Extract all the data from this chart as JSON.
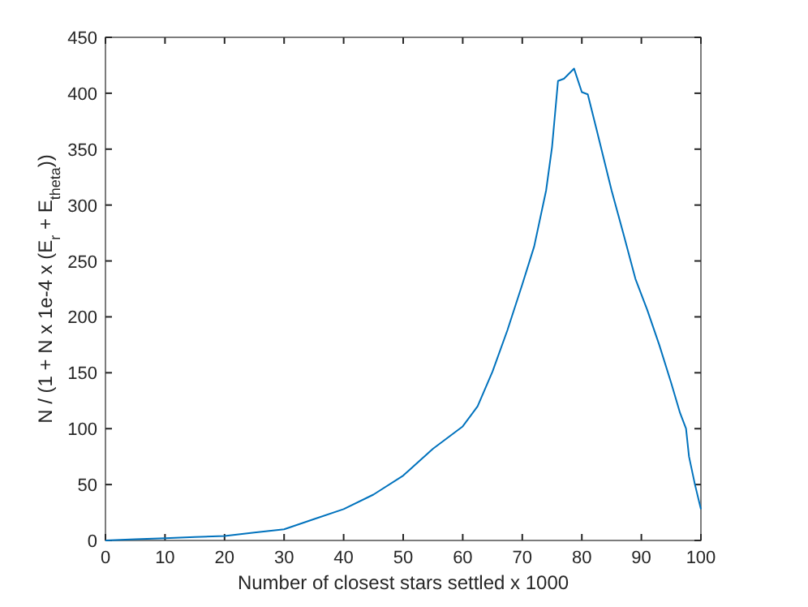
{
  "chart_data": {
    "type": "line",
    "xlabel": "Number of closest stars settled  x 1000",
    "ylabel": "N / (1 + N x 1e-4 x (E$_{r}$ + E$_{theta}$))",
    "x": [
      0,
      5,
      10,
      15,
      20,
      25,
      30,
      35,
      40,
      45,
      50,
      55,
      60,
      62.5,
      65,
      67.5,
      70,
      72,
      74,
      75,
      76,
      77,
      78.7,
      80,
      81,
      82.5,
      85,
      87,
      89,
      91,
      93,
      95,
      96.5,
      97.5,
      98,
      99,
      100
    ],
    "series": [
      {
        "color": "#0072bd",
        "values": [
          0,
          1,
          2,
          3,
          4,
          7,
          10,
          19,
          28,
          41,
          58,
          82,
          102,
          120,
          151,
          188,
          229,
          263,
          313,
          352,
          411,
          413,
          422,
          401,
          399,
          367,
          313,
          274,
          234,
          206,
          175,
          141,
          114,
          100,
          75,
          50,
          28
        ]
      }
    ],
    "xlim": [
      0,
      100
    ],
    "xticks": [
      0,
      10,
      20,
      30,
      40,
      50,
      60,
      70,
      80,
      90,
      100
    ],
    "ylim": [
      0,
      450
    ],
    "yticks": [
      0,
      50,
      100,
      150,
      200,
      250,
      300,
      350,
      400,
      450
    ],
    "grid": false,
    "marker": "none",
    "line_style": "solid"
  }
}
